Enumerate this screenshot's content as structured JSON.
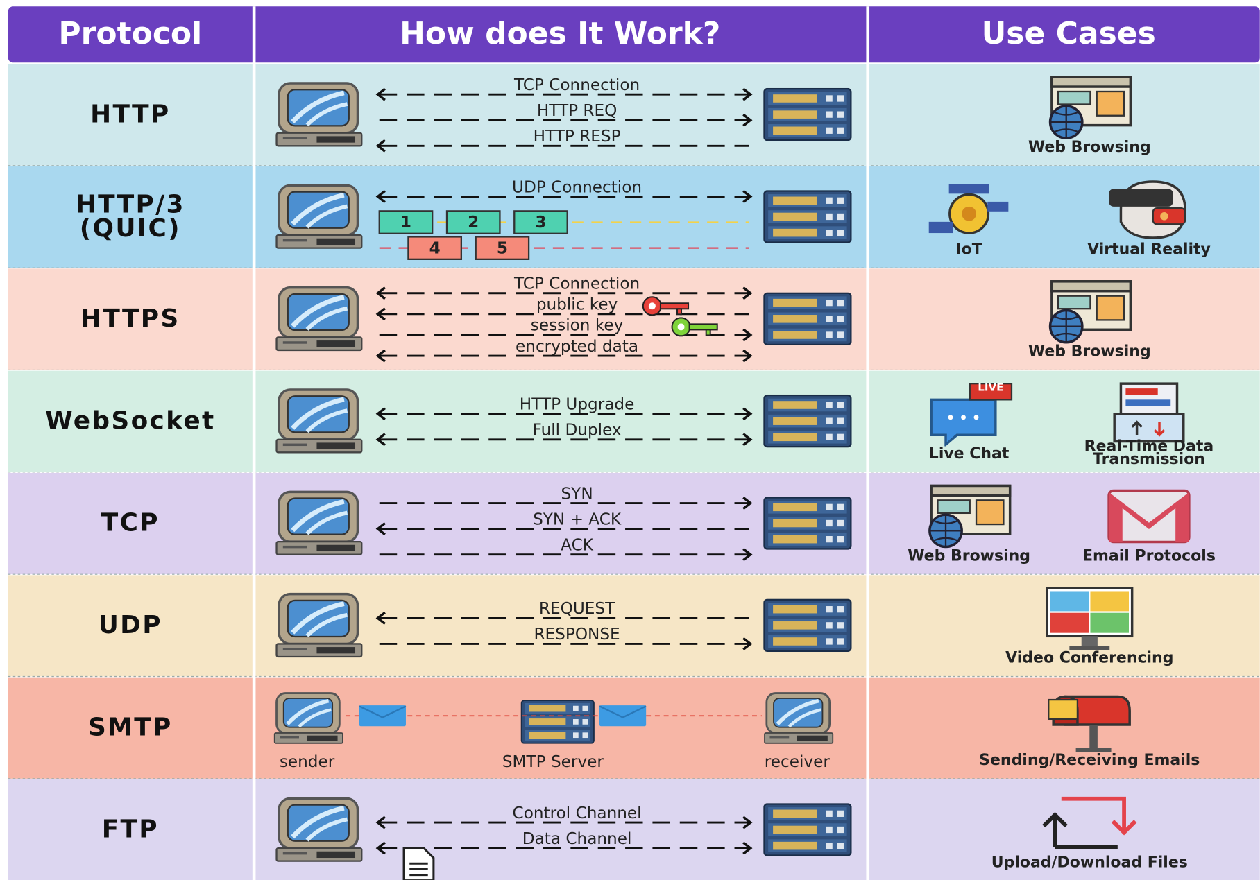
{
  "header": {
    "columns": [
      "Protocol",
      "How does It Work?",
      "Use Cases"
    ]
  },
  "rows": [
    {
      "protocol": [
        "HTTP"
      ],
      "flows": [
        {
          "label": "TCP Connection",
          "direction": "both"
        },
        {
          "label": "HTTP REQ",
          "direction": "right"
        },
        {
          "label": "HTTP RESP",
          "direction": "left"
        }
      ],
      "use_cases": [
        {
          "label": [
            "Web Browsing"
          ]
        }
      ]
    },
    {
      "protocol": [
        "HTTP/3",
        "(QUIC)"
      ],
      "flows": [
        {
          "label": "UDP Connection",
          "direction": "both"
        }
      ],
      "packets": [
        [
          "1",
          "2",
          "3"
        ],
        [
          "4",
          "5"
        ]
      ],
      "use_cases": [
        {
          "label": [
            "IoT"
          ]
        },
        {
          "label": [
            "Virtual Reality"
          ]
        }
      ]
    },
    {
      "protocol": [
        "HTTPS"
      ],
      "flows": [
        {
          "label": "TCP Connection",
          "direction": "both"
        },
        {
          "label": "public key",
          "direction": "left"
        },
        {
          "label": "session key",
          "direction": "right"
        },
        {
          "label": "encrypted data",
          "direction": "both"
        }
      ],
      "use_cases": [
        {
          "label": [
            "Web Browsing"
          ]
        }
      ]
    },
    {
      "protocol": [
        "WebSocket"
      ],
      "flows": [
        {
          "label": "HTTP Upgrade",
          "direction": "both"
        },
        {
          "label": "Full Duplex",
          "direction": "both"
        }
      ],
      "use_cases": [
        {
          "label": [
            "Live Chat"
          ],
          "badge": "LIVE"
        },
        {
          "label": [
            "Real-Time Data",
            "Transmission"
          ]
        }
      ]
    },
    {
      "protocol": [
        "TCP"
      ],
      "flows": [
        {
          "label": "SYN",
          "direction": "right"
        },
        {
          "label": "SYN + ACK",
          "direction": "left"
        },
        {
          "label": "ACK",
          "direction": "right"
        }
      ],
      "use_cases": [
        {
          "label": [
            "Web Browsing"
          ]
        },
        {
          "label": [
            "Email Protocols"
          ]
        }
      ]
    },
    {
      "protocol": [
        "UDP"
      ],
      "flows": [
        {
          "label": "REQUEST",
          "direction": "left"
        },
        {
          "label": "RESPONSE",
          "direction": "right"
        }
      ],
      "use_cases": [
        {
          "label": [
            "Video Conferencing"
          ]
        }
      ]
    },
    {
      "protocol": [
        "SMTP"
      ],
      "nodes": [
        "sender",
        "SMTP Server",
        "receiver"
      ],
      "use_cases": [
        {
          "label": [
            "Sending/Receiving Emails"
          ]
        }
      ]
    },
    {
      "protocol": [
        "FTP"
      ],
      "flows": [
        {
          "label": "Control Channel",
          "direction": "both"
        },
        {
          "label": "Data Channel",
          "direction": "both"
        }
      ],
      "use_cases": [
        {
          "label": [
            "Upload/Download Files"
          ]
        }
      ]
    }
  ]
}
